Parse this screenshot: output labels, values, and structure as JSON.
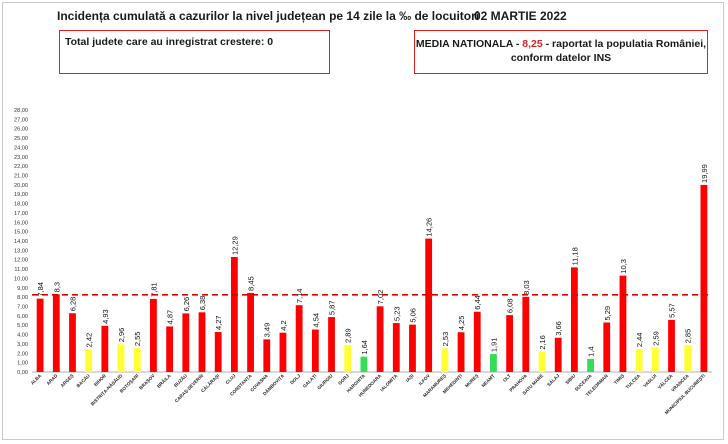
{
  "title": "Incidența cumulată a cazurilor la nivel județean pe 14 zile la ‰ de locuitori",
  "date": "02 MARTIE 2022",
  "box_left": "Total judete care au inregistrat crestere: 0",
  "box_right": {
    "label": "MEDIA NATIONALA - ",
    "value": "8,25",
    "rest": " -  raportat la populatia României,",
    "line2": "conform datelor INS"
  },
  "colors": {
    "red": "#ff0000",
    "yellow": "#ffff33",
    "green": "#33dd55",
    "dashed": "#e00000"
  },
  "chart_data": {
    "type": "bar",
    "ylim": [
      0,
      28
    ],
    "ytick_step": 1,
    "reference_line": 8.25,
    "categories": [
      "ALBA",
      "ARAD",
      "ARGEȘ",
      "BACĂU",
      "BIHOR",
      "BISTRIȚA-NĂSĂUD",
      "BOTOȘANI",
      "BRAȘOV",
      "BRĂILA",
      "BUZĂU",
      "CARAȘ-SEVERIN",
      "CĂLĂRAȘI",
      "CLUJ",
      "CONSTANȚA",
      "COVASNA",
      "DÂMBOVIȚA",
      "DOLJ",
      "GALAȚI",
      "GIURGIU",
      "GORJ",
      "HARGHITA",
      "HUNEDOARA",
      "IALOMIȚA",
      "IAȘI",
      "ILFOV",
      "MARAMUREȘ",
      "MEHEDINȚI",
      "MUREȘ",
      "NEAMȚ",
      "OLT",
      "PRAHOVA",
      "SATU MARE",
      "SĂLAJ",
      "SIBIU",
      "SUCEAVA",
      "TELEORMAN",
      "TIMIȘ",
      "TULCEA",
      "VASLUI",
      "VÂLCEA",
      "VRANCEA",
      "MUNICIPIUL BUCUREȘTI"
    ],
    "values": [
      7.84,
      8.3,
      6.28,
      2.42,
      4.93,
      2.96,
      2.55,
      7.81,
      4.87,
      6.26,
      6.38,
      4.27,
      12.29,
      8.45,
      3.49,
      4.2,
      7.14,
      4.54,
      5.87,
      2.89,
      1.64,
      7.02,
      5.23,
      5.06,
      14.26,
      2.53,
      4.25,
      6.44,
      1.91,
      6.08,
      8.03,
      2.16,
      3.66,
      11.18,
      1.4,
      5.29,
      10.3,
      2.44,
      2.59,
      5.57,
      2.85,
      19.99
    ],
    "labels": [
      "7,84",
      "8,3",
      "6,28",
      "2,42",
      "4,93",
      "2,96",
      "2,55",
      "7,81",
      "4,87",
      "6,26",
      "6,38",
      "4,27",
      "12,29",
      "8,45",
      "3,49",
      "4,2",
      "7,14",
      "4,54",
      "5,87",
      "2,89",
      "1,64",
      "7,02",
      "5,23",
      "5,06",
      "14,26",
      "2,53",
      "4,25",
      "6,44",
      "1,91",
      "6,08",
      "8,03",
      "2,16",
      "3,66",
      "11,18",
      "1,4",
      "5,29",
      "10,3",
      "2,44",
      "2,59",
      "5,57",
      "2,85",
      "19,99"
    ],
    "bar_colors": [
      "red",
      "red",
      "red",
      "yellow",
      "red",
      "yellow",
      "yellow",
      "red",
      "red",
      "red",
      "red",
      "red",
      "red",
      "red",
      "red",
      "red",
      "red",
      "red",
      "red",
      "yellow",
      "green",
      "red",
      "red",
      "red",
      "red",
      "yellow",
      "red",
      "red",
      "green",
      "red",
      "red",
      "yellow",
      "red",
      "red",
      "green",
      "red",
      "red",
      "yellow",
      "yellow",
      "red",
      "yellow",
      "red"
    ]
  }
}
